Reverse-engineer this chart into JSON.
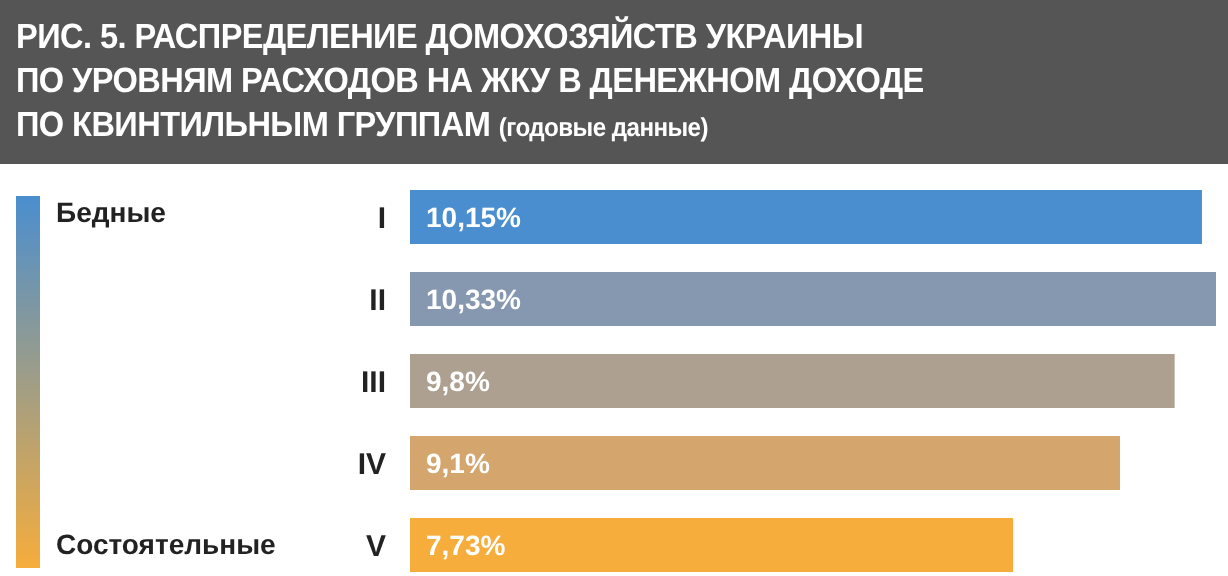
{
  "chart_data": {
    "type": "bar",
    "orientation": "horizontal",
    "title": "РИС. 5. РАСПРЕДЕЛЕНИЕ ДОМОХОЗЯЙСТВ УКРАИНЫ\nПО УРОВНЯМ РАСХОДОВ НА ЖКУ В ДЕНЕЖНОМ ДОХОДЕ\nПО КВИНТИЛЬНЫМ ГРУППАМ",
    "subtitle": "(годовые данные)",
    "categories": [
      "I",
      "II",
      "III",
      "IV",
      "V"
    ],
    "values": [
      10.15,
      10.33,
      9.8,
      9.1,
      7.73
    ],
    "value_labels": [
      "10,15%",
      "10,33%",
      "9,8%",
      "9,1%",
      "7,73%"
    ],
    "colors": [
      "#4a8ecf",
      "#8598b0",
      "#ada091",
      "#d4a56c",
      "#f6ad3c"
    ],
    "annotations": [
      "Бедные",
      "Состоятельные"
    ]
  }
}
